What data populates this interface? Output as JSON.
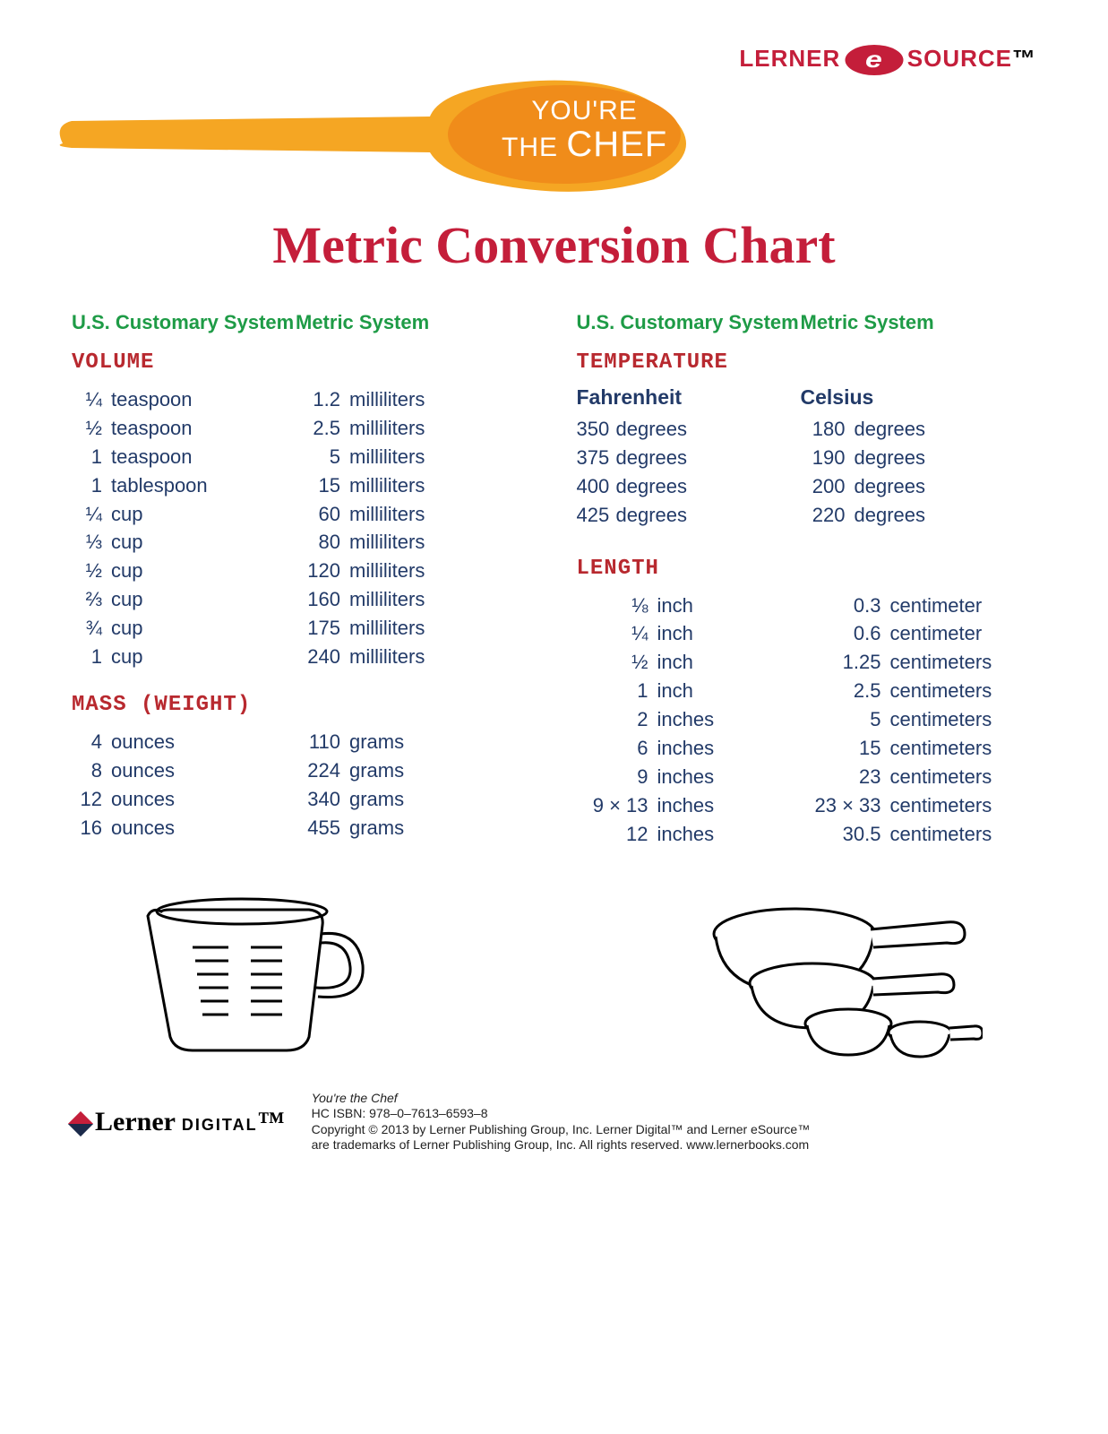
{
  "colors": {
    "title_red": "#c41e3a",
    "header_green": "#1e9b46",
    "section_red": "#b8292f",
    "body_navy": "#223a68",
    "spoon_handle": "#f5a623",
    "spoon_bowl": "#f08c1a",
    "brand_red": "#c41e3a"
  },
  "brand": {
    "left": "LERNER",
    "e": "e",
    "right": "SOURCE",
    "tm": "™"
  },
  "spoon": {
    "line1": "YOU'RE",
    "line2": "THE",
    "line3": "CHEF"
  },
  "title": "Metric Conversion Chart",
  "headers": {
    "us": "U.S. Customary System",
    "metric": "Metric System"
  },
  "sections": {
    "volume": {
      "title": "VOLUME",
      "rows": [
        {
          "n1": "¼",
          "u1": "teaspoon",
          "n2": "1.2",
          "u2": "milliliters"
        },
        {
          "n1": "½",
          "u1": "teaspoon",
          "n2": "2.5",
          "u2": "milliliters"
        },
        {
          "n1": "1",
          "u1": "teaspoon",
          "n2": "5",
          "u2": "milliliters"
        },
        {
          "n1": "1",
          "u1": "tablespoon",
          "n2": "15",
          "u2": "milliliters"
        },
        {
          "n1": "¼",
          "u1": "cup",
          "n2": "60",
          "u2": "milliliters"
        },
        {
          "n1": "⅓",
          "u1": "cup",
          "n2": "80",
          "u2": "milliliters"
        },
        {
          "n1": "½",
          "u1": "cup",
          "n2": "120",
          "u2": "milliliters"
        },
        {
          "n1": "⅔",
          "u1": "cup",
          "n2": "160",
          "u2": "milliliters"
        },
        {
          "n1": "¾",
          "u1": "cup",
          "n2": "175",
          "u2": "milliliters"
        },
        {
          "n1": "1",
          "u1": "cup",
          "n2": "240",
          "u2": "milliliters"
        }
      ]
    },
    "mass": {
      "title": "MASS (WEIGHT)",
      "rows": [
        {
          "n1": "4",
          "u1": "ounces",
          "n2": "110",
          "u2": "grams"
        },
        {
          "n1": "8",
          "u1": "ounces",
          "n2": "224",
          "u2": "grams"
        },
        {
          "n1": "12",
          "u1": "ounces",
          "n2": "340",
          "u2": "grams"
        },
        {
          "n1": "16",
          "u1": "ounces",
          "n2": "455",
          "u2": "grams"
        }
      ]
    },
    "temperature": {
      "title": "TEMPERATURE",
      "sub": {
        "f": "Fahrenheit",
        "c": "Celsius"
      },
      "rows": [
        {
          "n1": "350",
          "u1": "degrees",
          "n2": "180",
          "u2": "degrees"
        },
        {
          "n1": "375",
          "u1": "degrees",
          "n2": "190",
          "u2": "degrees"
        },
        {
          "n1": "400",
          "u1": "degrees",
          "n2": "200",
          "u2": "degrees"
        },
        {
          "n1": "425",
          "u1": "degrees",
          "n2": "220",
          "u2": "degrees"
        }
      ]
    },
    "length": {
      "title": "LENGTH",
      "rows": [
        {
          "n1": "⅛",
          "u1": "inch",
          "n2": "0.3",
          "u2": "centimeter"
        },
        {
          "n1": "¼",
          "u1": "inch",
          "n2": "0.6",
          "u2": "centimeter"
        },
        {
          "n1": "½",
          "u1": "inch",
          "n2": "1.25",
          "u2": "centimeters"
        },
        {
          "n1": "1",
          "u1": "inch",
          "n2": "2.5",
          "u2": "centimeters"
        },
        {
          "n1": "2",
          "u1": "inches",
          "n2": "5",
          "u2": "centimeters"
        },
        {
          "n1": "6",
          "u1": "inches",
          "n2": "15",
          "u2": "centimeters"
        },
        {
          "n1": "9",
          "u1": "inches",
          "n2": "23",
          "u2": "centimeters"
        },
        {
          "n1": "9 × 13",
          "u1": "inches",
          "n2": "23 × 33",
          "u2": "centimeters"
        },
        {
          "n1": "12",
          "u1": "inches",
          "n2": "30.5",
          "u2": "centimeters"
        }
      ]
    }
  },
  "footer": {
    "logo": {
      "name": "Lerner",
      "suffix": "DIGITAL",
      "tm": "™"
    },
    "line1": "You're the Chef",
    "line2": "HC ISBN: 978–0–7613–6593–8",
    "line3": "Copyright © 2013 by Lerner Publishing Group, Inc. Lerner Digital™ and Lerner eSource™",
    "line4": "are trademarks of Lerner Publishing Group, Inc. All rights reserved. www.lernerbooks.com"
  }
}
